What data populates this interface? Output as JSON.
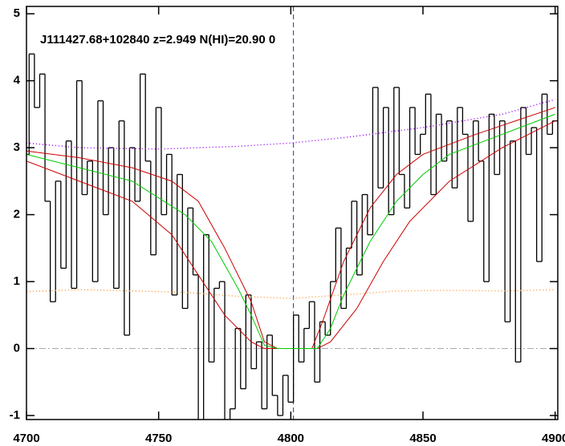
{
  "chart_data": {
    "type": "line",
    "annotation": "J111427.68+102840 z=2.949 N(HI)=20.90 0",
    "xlim": [
      4700,
      4901
    ],
    "ylim": [
      -1.06,
      5.11
    ],
    "xticks": [
      4700,
      4750,
      4800,
      4850,
      4900
    ],
    "yticks": [
      -1,
      0,
      1,
      2,
      3,
      4,
      5
    ],
    "reference_lines": [
      {
        "y": 0,
        "color": "#aaaaaa",
        "dash": "dashdot"
      },
      {
        "x": 4801,
        "color": "#2222cc",
        "dash": "dashed"
      }
    ],
    "series": [
      {
        "style": "step",
        "color": "#000000",
        "x": [
          4700,
          4702,
          4704,
          4706,
          4708,
          4710,
          4712,
          4714,
          4716,
          4718,
          4720,
          4722,
          4724,
          4726,
          4728,
          4730,
          4732,
          4734,
          4736,
          4738,
          4740,
          4742,
          4744,
          4746,
          4748,
          4750,
          4752,
          4754,
          4756,
          4758,
          4760,
          4762,
          4764,
          4766,
          4768,
          4770,
          4772,
          4774,
          4776,
          4778,
          4780,
          4782,
          4784,
          4786,
          4788,
          4790,
          4792,
          4794,
          4796,
          4798,
          4800,
          4802,
          4804,
          4806,
          4808,
          4810,
          4812,
          4814,
          4816,
          4818,
          4820,
          4822,
          4824,
          4826,
          4828,
          4830,
          4832,
          4834,
          4836,
          4838,
          4840,
          4842,
          4844,
          4846,
          4848,
          4850,
          4852,
          4854,
          4856,
          4858,
          4860,
          4862,
          4864,
          4866,
          4868,
          4870,
          4872,
          4874,
          4876,
          4878,
          4880,
          4882,
          4884,
          4886,
          4888,
          4890,
          4892,
          4894,
          4896,
          4898,
          4900
        ],
        "values": [
          2.9,
          4.4,
          3.6,
          4.1,
          2.2,
          0.7,
          2.5,
          1.2,
          3.1,
          0.9,
          4.0,
          2.3,
          2.8,
          1.0,
          3.7,
          2.0,
          3.0,
          0.9,
          3.4,
          0.2,
          3.0,
          2.2,
          4.1,
          2.8,
          1.4,
          3.6,
          2.0,
          2.9,
          0.8,
          2.6,
          0.6,
          2.1,
          1.1,
          -1.2,
          1.7,
          -0.2,
          0.9,
          1.0,
          -1.1,
          -0.9,
          0.3,
          -0.6,
          0.8,
          -0.3,
          0.1,
          -0.9,
          0.2,
          -0.7,
          -1.0,
          -0.4,
          -0.8,
          0.5,
          -0.2,
          0.3,
          0.7,
          -0.5,
          0.4,
          0.2,
          1.0,
          1.8,
          0.6,
          1.5,
          2.2,
          1.1,
          2.3,
          1.7,
          3.9,
          2.4,
          3.6,
          2.0,
          3.9,
          2.6,
          2.1,
          3.6,
          2.9,
          3.2,
          3.8,
          2.3,
          3.5,
          2.8,
          3.4,
          2.4,
          3.6,
          3.2,
          1.9,
          3.4,
          2.8,
          1.0,
          3.5,
          2.6,
          3.4,
          0.4,
          3.1,
          -0.2,
          3.6,
          2.9,
          3.3,
          1.3,
          3.8,
          3.2,
          3.4
        ]
      },
      {
        "style": "dotted",
        "color": "#ff9933",
        "x": [
          4700,
          4720,
          4740,
          4760,
          4780,
          4800,
          4820,
          4840,
          4860,
          4880,
          4900
        ],
        "values": [
          0.85,
          0.88,
          0.86,
          0.84,
          0.78,
          0.75,
          0.8,
          0.86,
          0.87,
          0.86,
          0.88
        ]
      },
      {
        "style": "dotted",
        "color": "#9900ff",
        "x": [
          4700,
          4720,
          4750,
          4780,
          4800,
          4820,
          4850,
          4880,
          4900
        ],
        "values": [
          3.07,
          3.0,
          2.98,
          3.02,
          3.07,
          3.15,
          3.3,
          3.5,
          3.72
        ]
      },
      {
        "style": "line",
        "color": "#cc0000",
        "x": [
          4700,
          4720,
          4740,
          4755,
          4765,
          4775,
          4785,
          4790,
          4795,
          4808,
          4812,
          4820,
          4830,
          4840,
          4850,
          4870,
          4900
        ],
        "values": [
          2.95,
          2.85,
          2.7,
          2.5,
          2.2,
          1.5,
          0.7,
          0.1,
          0,
          0,
          0.4,
          1.3,
          2.1,
          2.6,
          2.9,
          3.2,
          3.6
        ]
      },
      {
        "style": "line",
        "color": "#cc0000",
        "x": [
          4700,
          4720,
          4740,
          4755,
          4765,
          4775,
          4785,
          4790,
          4810,
          4815,
          4825,
          4835,
          4845,
          4860,
          4880,
          4900
        ],
        "values": [
          2.8,
          2.5,
          2.2,
          1.7,
          1.1,
          0.5,
          0.1,
          0,
          0,
          0.1,
          0.6,
          1.3,
          1.9,
          2.5,
          3.0,
          3.4
        ]
      },
      {
        "style": "line",
        "color": "#00cc00",
        "x": [
          4700,
          4720,
          4740,
          4760,
          4770,
          4780,
          4785,
          4790,
          4795,
          4810,
          4815,
          4820,
          4830,
          4840,
          4850,
          4860,
          4880,
          4900
        ],
        "values": [
          2.9,
          2.7,
          2.5,
          2.0,
          1.6,
          0.9,
          0.5,
          0.05,
          0,
          0,
          0.3,
          0.8,
          1.6,
          2.2,
          2.6,
          2.9,
          3.2,
          3.5
        ]
      }
    ]
  }
}
